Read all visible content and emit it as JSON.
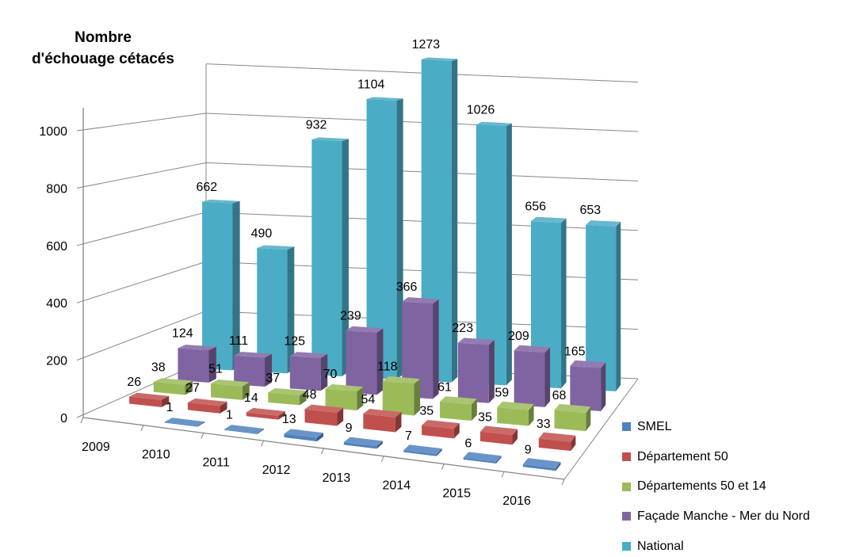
{
  "chart_data": {
    "type": "bar",
    "subtype": "3d-column",
    "title": "Nombre\nd'échouage cétacés",
    "title_lines": [
      "Nombre",
      "d'échouage cétacés"
    ],
    "categories": [
      "2009",
      "2010",
      "2011",
      "2012",
      "2013",
      "2014",
      "2015",
      "2016"
    ],
    "yticks": [
      0,
      200,
      400,
      600,
      800,
      1000
    ],
    "ylim": [
      0,
      1200
    ],
    "grid": true,
    "legend_position": "right",
    "series": [
      {
        "name": "SMEL",
        "color": "#4f81bd",
        "values": [
          null,
          1,
          1,
          13,
          9,
          7,
          6,
          9
        ]
      },
      {
        "name": "Département 50",
        "color": "#c0504d",
        "values": [
          26,
          27,
          14,
          48,
          54,
          35,
          35,
          33
        ]
      },
      {
        "name": "Départements 50 et 14",
        "color": "#9bbb59",
        "values": [
          38,
          51,
          37,
          70,
          118,
          61,
          59,
          68
        ]
      },
      {
        "name": "Façade Manche - Mer du Nord",
        "color": "#8064a2",
        "values": [
          124,
          111,
          125,
          239,
          366,
          223,
          209,
          165
        ]
      },
      {
        "name": "National",
        "color": "#4bacc6",
        "values": [
          662,
          490,
          932,
          1104,
          1273,
          1026,
          656,
          653
        ]
      }
    ]
  }
}
